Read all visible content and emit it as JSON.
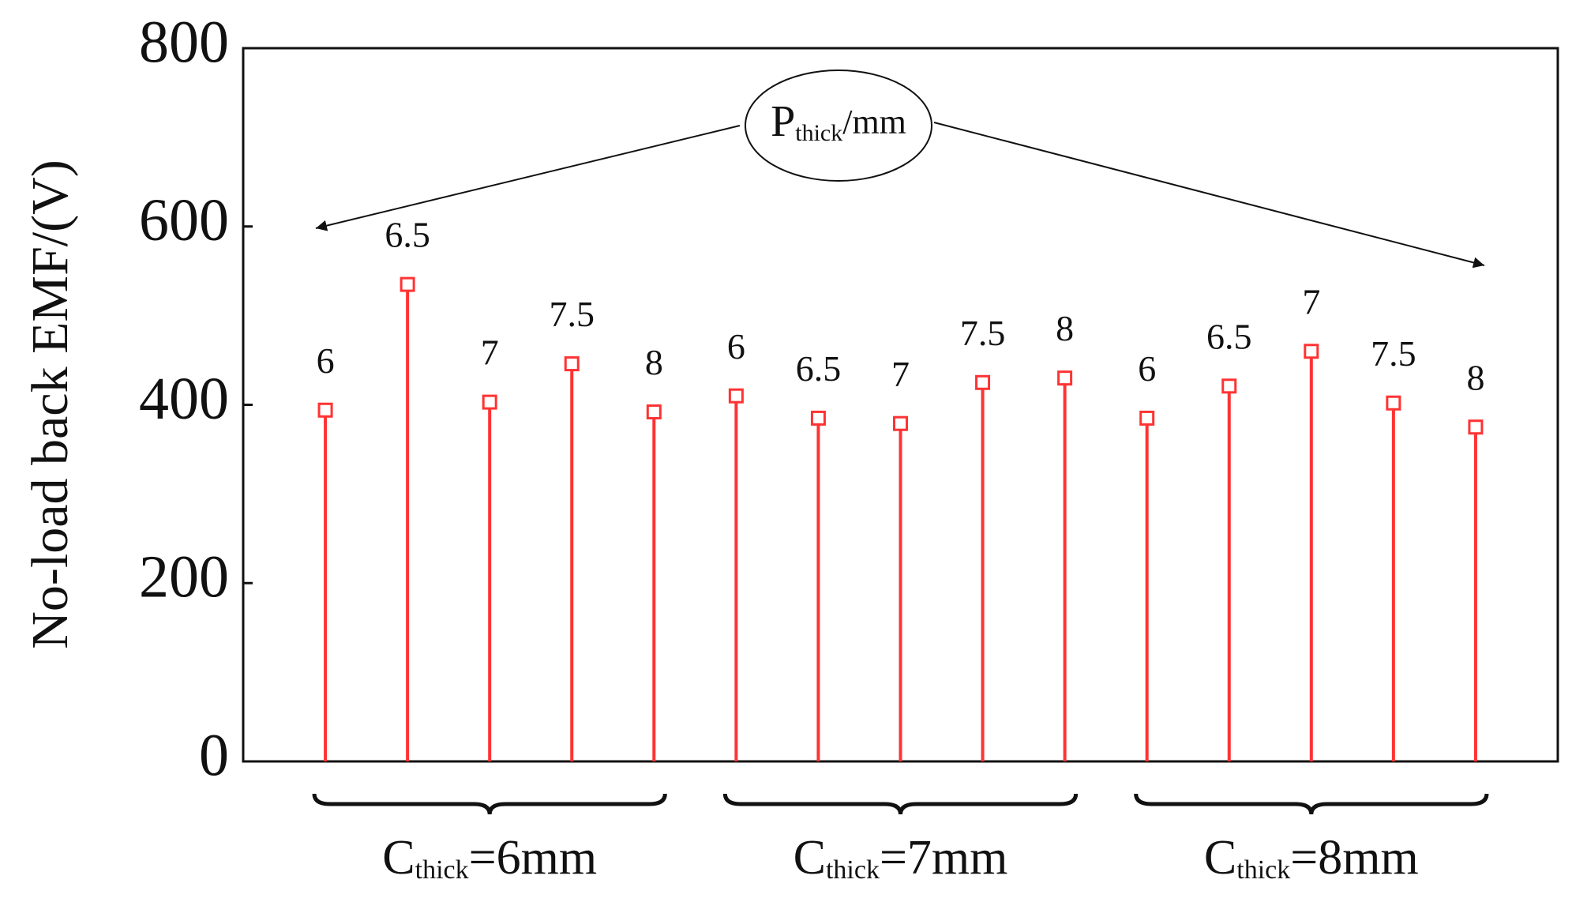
{
  "chart_data": {
    "type": "stem",
    "y_label": "No-load back EMF/(V)",
    "annotation": {
      "main": "P",
      "sub": "thick",
      "rest": "/mm"
    },
    "categories": [
      "6",
      "6.5",
      "7",
      "7.5",
      "8",
      "6",
      "6.5",
      "7",
      "7.5",
      "8",
      "6",
      "6.5",
      "7",
      "7.5",
      "8"
    ],
    "values": [
      394,
      535,
      403,
      446,
      392,
      410,
      385,
      379,
      425,
      430,
      385,
      421,
      460,
      402,
      375
    ],
    "groups": [
      {
        "main": "C",
        "sub": "thick",
        "rest": "=6mm"
      },
      {
        "main": "C",
        "sub": "thick",
        "rest": "=7mm"
      },
      {
        "main": "C",
        "sub": "thick",
        "rest": "=8mm"
      }
    ],
    "color": "#ff3333",
    "ylim": [
      0,
      800
    ],
    "yticks": [
      0,
      200,
      400,
      600,
      800
    ]
  }
}
